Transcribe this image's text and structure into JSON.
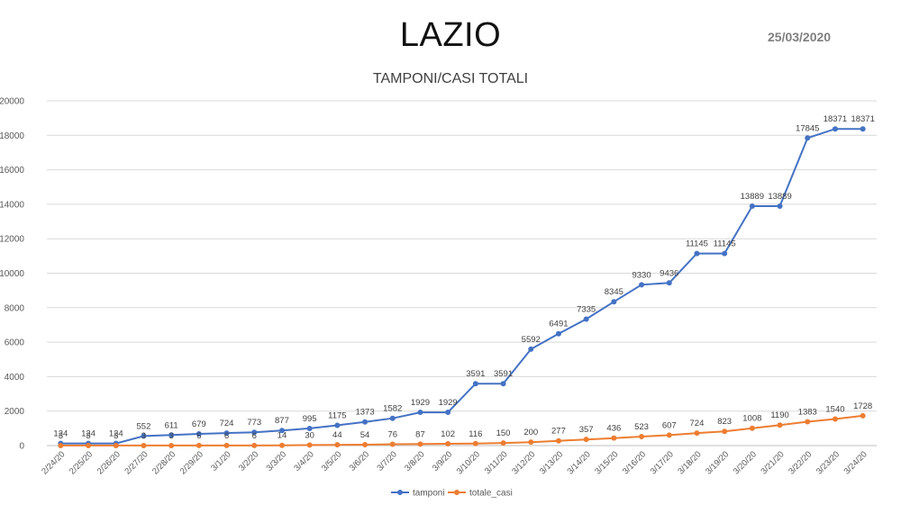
{
  "header": {
    "title": "LAZIO",
    "date": "25/03/2020"
  },
  "chart_data": {
    "type": "line",
    "title": "TAMPONI/CASI TOTALI",
    "xlabel": "",
    "ylabel": "",
    "ylim": [
      0,
      20000
    ],
    "yticks": [
      0,
      2000,
      4000,
      6000,
      8000,
      10000,
      12000,
      14000,
      16000,
      18000,
      20000
    ],
    "grid": true,
    "legend_position": "bottom",
    "categories": [
      "2/24/20",
      "2/25/20",
      "2/26/20",
      "2/27/20",
      "2/28/20",
      "2/29/20",
      "3/1/20",
      "3/2/20",
      "3/3/20",
      "3/4/20",
      "3/5/20",
      "3/6/20",
      "3/7/20",
      "3/8/20",
      "3/9/20",
      "3/10/20",
      "3/11/20",
      "3/12/20",
      "3/13/20",
      "3/14/20",
      "3/15/20",
      "3/16/20",
      "3/17/20",
      "3/18/20",
      "3/19/20",
      "3/20/20",
      "3/21/20",
      "3/22/20",
      "3/23/20",
      "3/24/20"
    ],
    "series": [
      {
        "name": "tamponi",
        "color": "#4472c4",
        "values": [
          124,
          124,
          124,
          552,
          611,
          679,
          724,
          773,
          877,
          995,
          1175,
          1373,
          1582,
          1929,
          1929,
          3591,
          3591,
          5592,
          6491,
          7335,
          8345,
          9330,
          9436,
          11145,
          11145,
          13889,
          13889,
          17845,
          18371,
          18371
        ]
      },
      {
        "name": "totale_casi",
        "color": "#ed7d31",
        "values": [
          3,
          3,
          3,
          3,
          3,
          6,
          6,
          6,
          14,
          30,
          44,
          54,
          76,
          87,
          102,
          116,
          150,
          200,
          277,
          357,
          436,
          523,
          607,
          724,
          823,
          1008,
          1190,
          1383,
          1540,
          1728
        ]
      }
    ]
  }
}
